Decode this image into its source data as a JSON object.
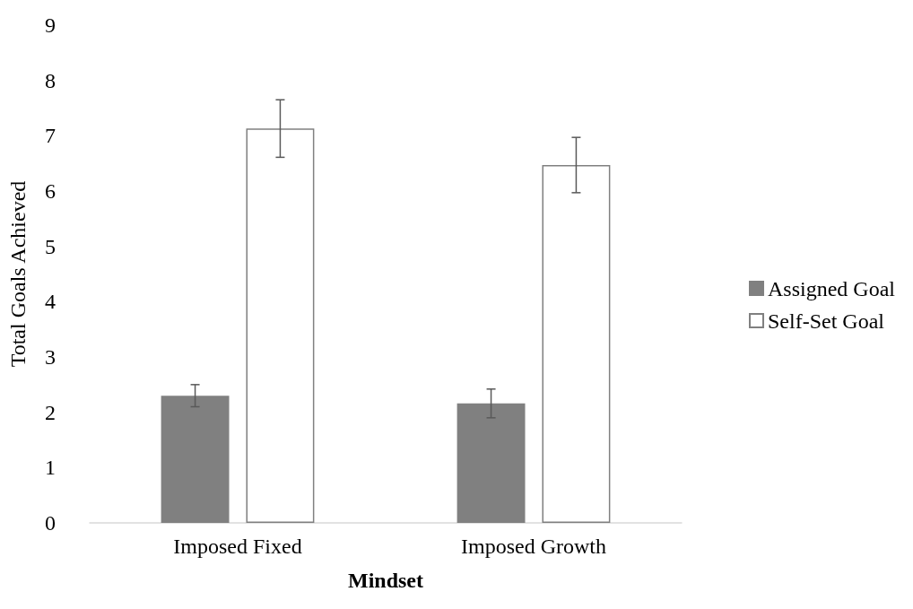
{
  "chart_data": {
    "type": "bar",
    "xlabel": "Mindset",
    "ylabel": "Total Goals Achieved",
    "categories": [
      "Imposed Fixed",
      "Imposed Growth"
    ],
    "series": [
      {
        "name": "Assigned Goal",
        "color": "#808080",
        "values": [
          2.3,
          2.16
        ],
        "errors": [
          0.2,
          0.26
        ]
      },
      {
        "name": "Self-Set Goal",
        "color": "#ffffff",
        "values": [
          7.13,
          6.47
        ],
        "errors": [
          0.52,
          0.5
        ]
      }
    ],
    "ylim": [
      0,
      9
    ],
    "yticks": [
      0,
      1,
      2,
      3,
      4,
      5,
      6,
      7,
      8,
      9
    ],
    "grid": false,
    "legend": "right"
  }
}
